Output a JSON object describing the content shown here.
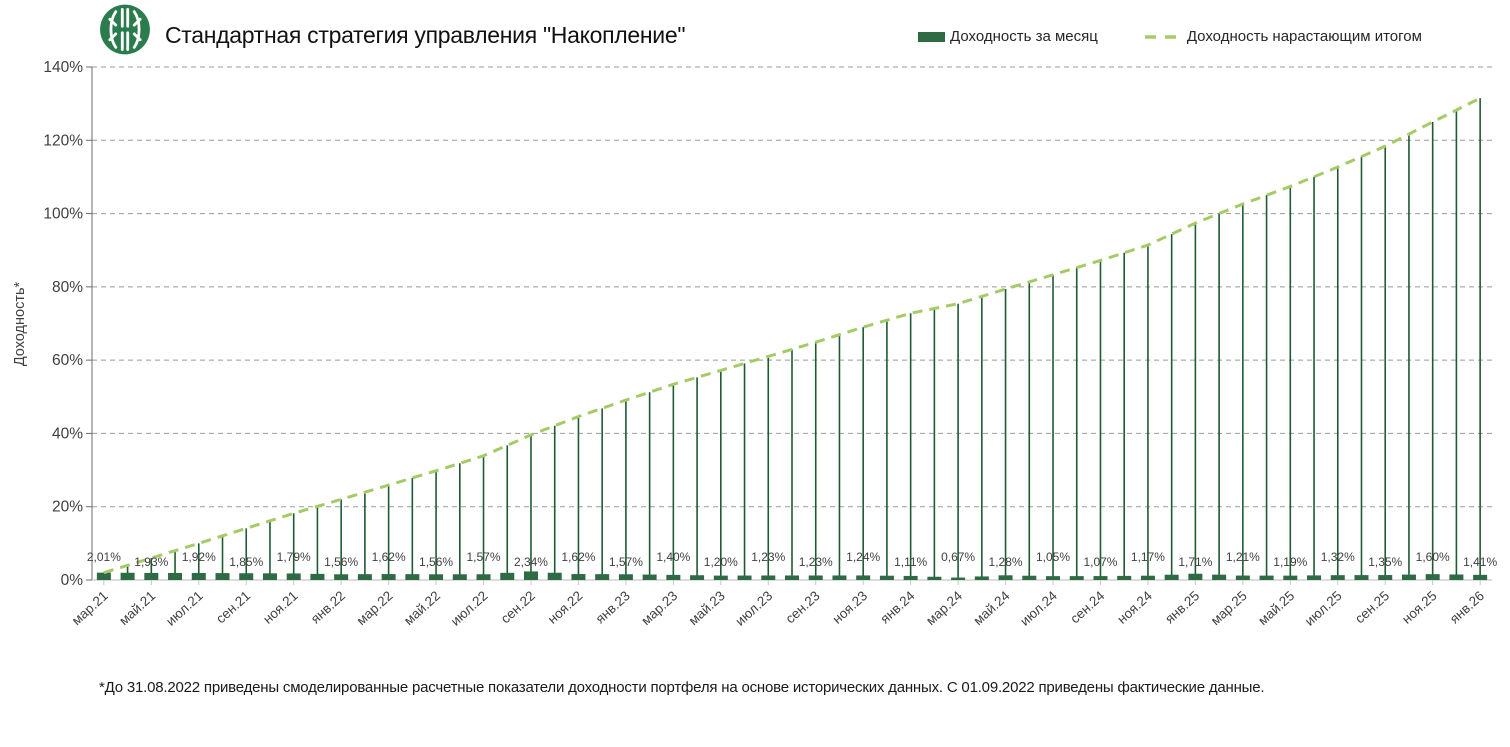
{
  "header": {
    "title": "Стандартная стратегия управления \"Накопление\"",
    "logo": "bank-green-circle-emblem"
  },
  "legend": [
    {
      "label": "Доходность за месяц",
      "marker": "bar-swatch",
      "color": "#2E6B44"
    },
    {
      "label": "Доходность нарастающим итогом",
      "marker": "dashed-line-swatch",
      "color": "#A5CB66"
    }
  ],
  "footnote": "*До 31.08.2022 приведены смоделированные расчетные показатели доходности портфеля на основе исторических данных. С 01.09.2022 приведены фактические данные.",
  "chart_data": {
    "type": "bar",
    "subtype": "combo bar + dashed cumulative line with drop lines, monthly points with tick labels every 2nd month",
    "title": "Стандартная стратегия управления \"Накопление\"",
    "ylabel": "Доходность*",
    "ylim": [
      0,
      140
    ],
    "ytick_labels": [
      "0%",
      "20%",
      "40%",
      "60%",
      "80%",
      "100%",
      "120%",
      "140%"
    ],
    "grid": "horizontal dashed",
    "legend_position": "top-right",
    "months_total": 59,
    "tick_every_months": 2,
    "categories": [
      "мар.21",
      "май.21",
      "июл.21",
      "сен.21",
      "ноя.21",
      "янв.22",
      "мар.22",
      "май.22",
      "июл.22",
      "сен.22",
      "ноя.22",
      "янв.23",
      "мар.23",
      "май.23",
      "июл.23",
      "сен.23",
      "ноя.23",
      "янв.24",
      "мар.24",
      "май.24",
      "июл.24",
      "сен.24",
      "ноя.24",
      "янв.25",
      "мар.25",
      "май.25",
      "июл.25",
      "сен.25",
      "ноя.25",
      "янв.26"
    ],
    "series": [
      {
        "name": "Доходность за месяц",
        "type": "bar",
        "color": "#2E6B44",
        "values_pct": [
          2.01,
          1.93,
          1.92,
          1.85,
          1.79,
          1.56,
          1.62,
          1.56,
          1.57,
          2.34,
          1.62,
          1.57,
          1.4,
          1.2,
          1.23,
          1.23,
          1.24,
          1.11,
          0.67,
          1.28,
          1.05,
          1.07,
          1.17,
          1.71,
          1.21,
          1.19,
          1.32,
          1.35,
          1.6,
          1.41
        ],
        "data_labels": [
          "2,01%",
          "1,93%",
          "1,92%",
          "1,85%",
          "1,79%",
          "1,56%",
          "1,62%",
          "1,56%",
          "1,57%",
          "2,34%",
          "1,62%",
          "1,57%",
          "1,40%",
          "1,20%",
          "1,23%",
          "1,23%",
          "1,24%",
          "1,11%",
          "0,67%",
          "1,28%",
          "1,05%",
          "1,07%",
          "1,17%",
          "1,71%",
          "1,21%",
          "1,19%",
          "1,32%",
          "1,35%",
          "1,60%",
          "1,41%"
        ]
      },
      {
        "name": "Доходность нарастающим итогом",
        "type": "line-dashed",
        "color": "#A5CB66",
        "values_pct": [
          2.0,
          6.0,
          10.0,
          14.1,
          18.2,
          22.0,
          25.9,
          29.8,
          33.9,
          39.6,
          44.6,
          49.1,
          53.4,
          57.2,
          61.0,
          64.9,
          69.0,
          72.8,
          75.4,
          79.4,
          83.3,
          87.2,
          91.4,
          97.4,
          102.6,
          107.4,
          112.7,
          118.4,
          125.0,
          131.5
        ]
      }
    ],
    "colors": {
      "bar": "#2E6B44",
      "drop_line": "#1F5A33",
      "cumulative_line": "#A5CB66",
      "grid_line": "#9B9B9B",
      "x_axis": "#C6C6C6",
      "y_axis": "#6E6E6E",
      "tick_label": "#404040",
      "data_label": "#3F3F3F"
    }
  }
}
